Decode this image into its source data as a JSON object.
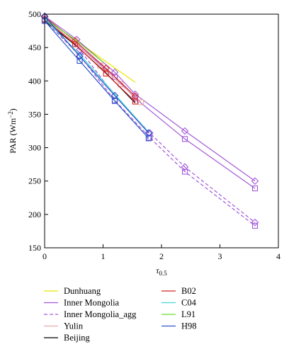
{
  "chart_data": {
    "type": "line",
    "xlabel": "τ",
    "xlabel_sub": "0.5",
    "ylabel": "PAR (Wm",
    "ylabel_sup": "−2",
    "ylabel_close": ")",
    "xlim": [
      0,
      4
    ],
    "ylim": [
      150,
      500
    ],
    "x_ticks": [
      0,
      1,
      2,
      3,
      4
    ],
    "y_ticks": [
      150,
      200,
      250,
      300,
      350,
      400,
      450,
      500
    ],
    "grid": false,
    "legend_position": "bottom",
    "series": [
      {
        "name": "Dunhuang",
        "color": "#e8e800",
        "dash": "solid",
        "points": [
          [
            0.0,
            495
          ],
          [
            0.25,
            478
          ],
          [
            0.55,
            460
          ],
          [
            1.0,
            432
          ],
          [
            1.55,
            398
          ]
        ],
        "markers": []
      },
      {
        "name": "Inner Mongolia",
        "color": "#a259d9",
        "dash": "solid",
        "points": [
          [
            0.0,
            497
          ],
          [
            0.55,
            462
          ],
          [
            1.2,
            413
          ],
          [
            1.55,
            380
          ],
          [
            2.4,
            325
          ],
          [
            3.6,
            250
          ]
        ],
        "marker": "diamond"
      },
      {
        "name": "Inner Mongolia",
        "color": "#a259d9",
        "dash": "solid",
        "points": [
          [
            0.0,
            493
          ],
          [
            0.55,
            455
          ],
          [
            1.2,
            406
          ],
          [
            1.55,
            374
          ],
          [
            2.4,
            313
          ],
          [
            3.6,
            239
          ]
        ],
        "marker": "square"
      },
      {
        "name": "Inner Mongolia_agg",
        "color": "#a259d9",
        "dash": "dashed",
        "points": [
          [
            0.0,
            496
          ],
          [
            0.6,
            447
          ],
          [
            1.2,
            378
          ],
          [
            1.8,
            322
          ],
          [
            2.4,
            271
          ],
          [
            3.6,
            188
          ]
        ],
        "marker": "diamond"
      },
      {
        "name": "Inner Mongolia_agg",
        "color": "#a259d9",
        "dash": "dashed",
        "points": [
          [
            0.0,
            491
          ],
          [
            0.6,
            438
          ],
          [
            1.2,
            371
          ],
          [
            1.8,
            315
          ],
          [
            2.4,
            264
          ],
          [
            3.6,
            183
          ]
        ],
        "marker": "square"
      },
      {
        "name": "Yulin",
        "color": "#e8a8a8",
        "dash": "solid",
        "points": [
          [
            0.0,
            493
          ],
          [
            0.55,
            455
          ],
          [
            0.95,
            423
          ],
          [
            1.3,
            395
          ],
          [
            1.65,
            368
          ]
        ],
        "marker": "square"
      },
      {
        "name": "Beijing",
        "color": "#000000",
        "dash": "solid",
        "points": [
          [
            0.0,
            490
          ],
          [
            0.55,
            452
          ],
          [
            1.05,
            412
          ],
          [
            1.55,
            367
          ]
        ],
        "markers": []
      },
      {
        "name": "B02",
        "color": "#d42424",
        "dash": "solid",
        "points": [
          [
            0.0,
            496
          ],
          [
            0.52,
            460
          ],
          [
            1.05,
            419
          ],
          [
            1.55,
            377
          ]
        ],
        "marker": "diamond"
      },
      {
        "name": "B02",
        "color": "#d42424",
        "dash": "solid",
        "points": [
          [
            0.0,
            492
          ],
          [
            0.52,
            455
          ],
          [
            1.05,
            411
          ],
          [
            1.55,
            369
          ]
        ],
        "marker": "square"
      },
      {
        "name": "C04",
        "color": "#45d8d8",
        "dash": "solid",
        "points": [
          [
            0.0,
            493
          ],
          [
            0.6,
            440
          ],
          [
            1.2,
            380
          ],
          [
            1.75,
            326
          ]
        ],
        "markers": []
      },
      {
        "name": "L91",
        "color": "#6bdb28",
        "dash": "solid",
        "points": [
          [
            0.0,
            494
          ],
          [
            0.3,
            475
          ],
          [
            0.55,
            460
          ],
          [
            1.0,
            428
          ]
        ],
        "markers": []
      },
      {
        "name": "H98",
        "color": "#2c52c8",
        "dash": "solid",
        "points": [
          [
            0.0,
            497
          ],
          [
            0.6,
            437
          ],
          [
            1.2,
            378
          ],
          [
            1.78,
            322
          ]
        ],
        "marker": "diamond"
      },
      {
        "name": "H98",
        "color": "#2c52c8",
        "dash": "solid",
        "points": [
          [
            0.0,
            490
          ],
          [
            0.6,
            430
          ],
          [
            1.2,
            370
          ],
          [
            1.78,
            314
          ]
        ],
        "marker": "square"
      }
    ],
    "legend": [
      {
        "name": "Dunhuang",
        "color": "#e8e800",
        "dash": "solid"
      },
      {
        "name": "Inner Mongolia",
        "color": "#a259d9",
        "dash": "solid"
      },
      {
        "name": "Inner Mongolia_agg",
        "color": "#a259d9",
        "dash": "dashed"
      },
      {
        "name": "Yulin",
        "color": "#e8a8a8",
        "dash": "solid"
      },
      {
        "name": "Beijing",
        "color": "#000000",
        "dash": "solid"
      },
      {
        "name": "B02",
        "color": "#d42424",
        "dash": "solid"
      },
      {
        "name": "C04",
        "color": "#45d8d8",
        "dash": "solid"
      },
      {
        "name": "L91",
        "color": "#6bdb28",
        "dash": "solid"
      },
      {
        "name": "H98",
        "color": "#2c52c8",
        "dash": "solid"
      }
    ]
  }
}
